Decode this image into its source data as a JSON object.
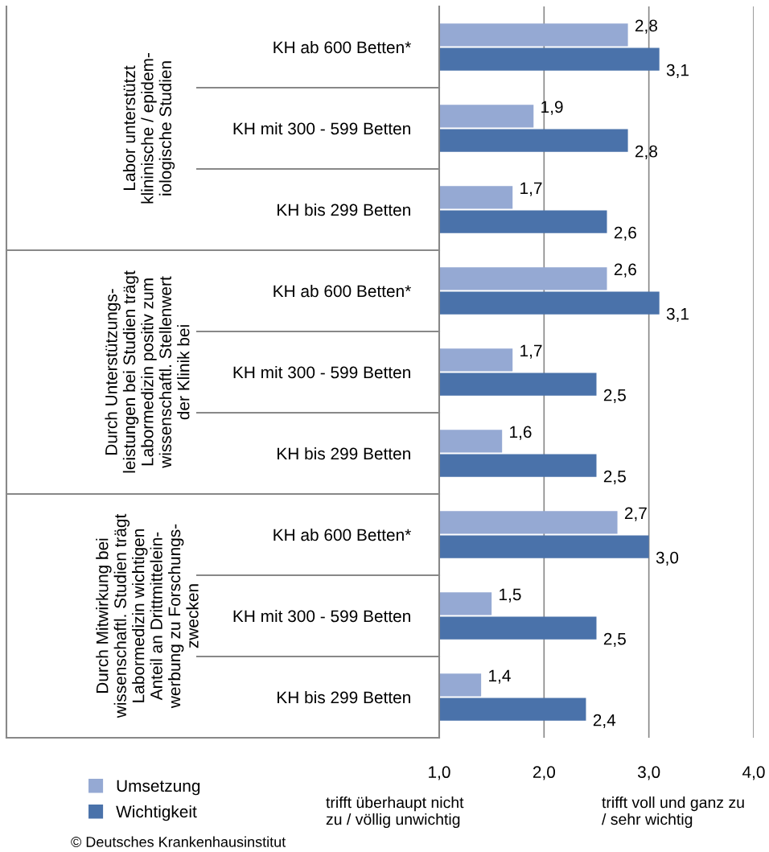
{
  "chart_data": {
    "type": "bar",
    "orientation": "horizontal",
    "categories": [
      "KH ab 600 Betten*",
      "KH mit 300 - 599 Betten",
      "KH bis 299 Betten",
      "KH ab 600 Betten*",
      "KH mit 300 - 599 Betten",
      "KH bis 299 Betten",
      "KH ab 600 Betten*",
      "KH mit 300 - 599 Betten",
      "KH bis 299 Betten"
    ],
    "series": [
      {
        "name": "Umsetzung",
        "color": "#95a9d3",
        "values": [
          2.8,
          1.9,
          1.7,
          2.6,
          1.7,
          1.6,
          2.7,
          1.5,
          1.4
        ],
        "value_labels": [
          "2,8",
          "1,9",
          "1,7",
          "2,6",
          "1,7",
          "1,6",
          "2,7",
          "1,5",
          "1,4"
        ]
      },
      {
        "name": "Wichtigkeit",
        "color": "#4a72aa",
        "values": [
          3.1,
          2.8,
          2.6,
          3.1,
          2.5,
          2.5,
          3.0,
          2.5,
          2.4
        ],
        "value_labels": [
          "3,1",
          "2,8",
          "2,6",
          "3,1",
          "2,5",
          "2,5",
          "3,0",
          "2,5",
          "2,4"
        ]
      }
    ],
    "xlim": [
      1,
      4
    ],
    "xticks": [
      {
        "value": 1,
        "label": "1,0"
      },
      {
        "value": 2,
        "label": "2,0"
      },
      {
        "value": 3,
        "label": "3,0"
      },
      {
        "value": 4,
        "label": "4,0"
      }
    ],
    "grid": "x",
    "legend": "bottom left",
    "annotations": [
      "Labor unterstützt\nklininische / epidem-\niologische Studien",
      "Durch Unterstützungs-\nleistungen bei Studien trägt\nLabormedizin positiv zum\nwissenschaftl. Stellenwert\nder Klinik bei",
      "Durch Mitwirkung bei\nwissenschaftl. Studien trägt\nLabormedizin wichtigen\nAnteil an Drittmittelein-\nwerbung zu Forschungs-\nzwecken",
      "trifft überhaupt nicht\nzu / völlig unwichtig",
      "trifft voll und ganz zu\n/ sehr wichtig",
      "© Deutsches Krankenhausinstitut"
    ]
  }
}
